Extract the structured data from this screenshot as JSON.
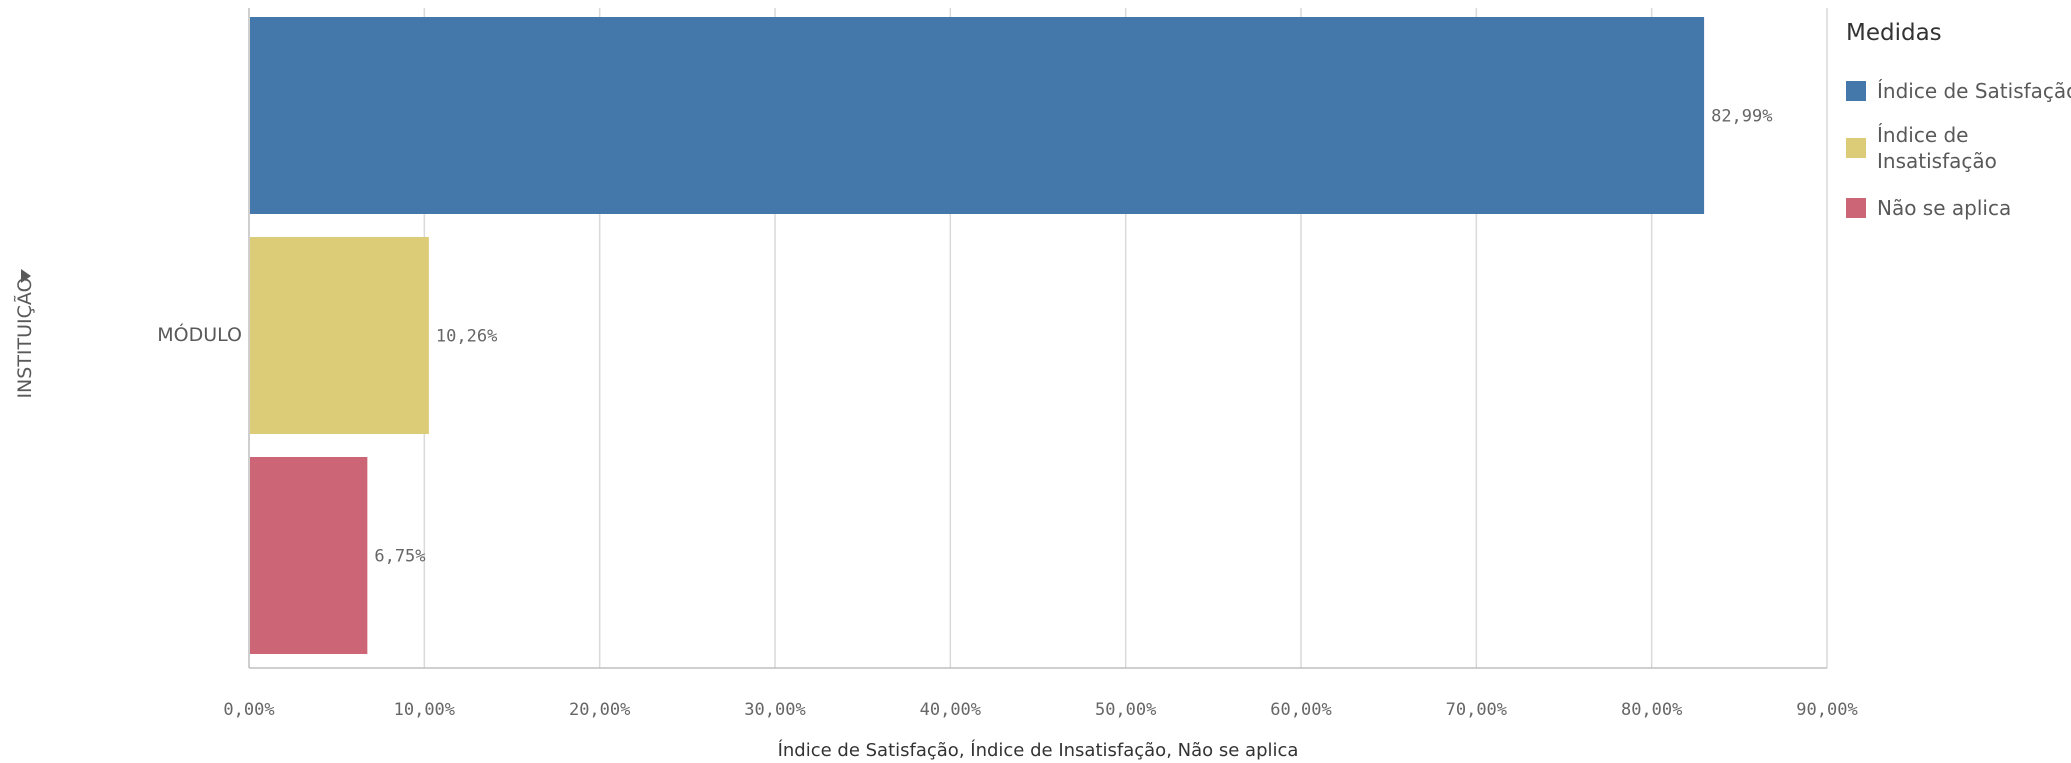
{
  "chart_data": {
    "type": "bar",
    "orientation": "horizontal",
    "dimension_label": "INSTITUIÇÃO",
    "categories": [
      "MÓDULO"
    ],
    "series": [
      {
        "name": "Índice de Satisfação",
        "values": [
          82.99
        ],
        "color": "#4477aa",
        "label": "82,99%"
      },
      {
        "name": "Índice de Insatisfação",
        "values": [
          10.26
        ],
        "color": "#ddcc77",
        "label": "10,26%"
      },
      {
        "name": "Não se aplica",
        "values": [
          6.75
        ],
        "color": "#cc6677",
        "label": "6,75%"
      }
    ],
    "xlabel": "Índice de Satisfação, Índice de Insatisfação, Não se aplica",
    "xlim": [
      0,
      90
    ],
    "xticks": [
      0,
      10,
      20,
      30,
      40,
      50,
      60,
      70,
      80,
      90
    ],
    "xtick_labels": [
      "0,00%",
      "10,00%",
      "20,00%",
      "30,00%",
      "40,00%",
      "50,00%",
      "60,00%",
      "70,00%",
      "80,00%",
      "90,00%"
    ],
    "grid": true,
    "legend": {
      "title": "Medidas",
      "placement": "right",
      "items": [
        {
          "label_lines": [
            "Índice de Satisfação"
          ]
        },
        {
          "label_lines": [
            "Índice de",
            "Insatisfação"
          ]
        },
        {
          "label_lines": [
            "Não se aplica"
          ]
        }
      ]
    }
  }
}
